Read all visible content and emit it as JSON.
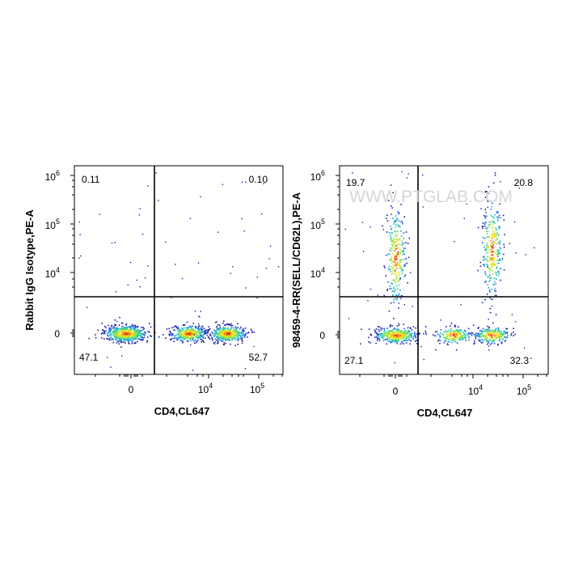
{
  "watermark": "WWW.PTGLAB.COM",
  "chart_data": [
    {
      "type": "scatter",
      "subtype": "flow-cytometry-pseudocolor-density",
      "xlabel": "CD4,CL647",
      "ylabel": "Rabbit IgG Isotype,PE-A",
      "x_scale": "biexponential",
      "y_scale": "biexponential",
      "x_ticks": [
        {
          "value": 0,
          "base": "0",
          "exp": ""
        },
        {
          "value": 10000,
          "base": "10",
          "exp": "4"
        },
        {
          "value": 100000,
          "base": "10",
          "exp": "5"
        }
      ],
      "y_ticks": [
        {
          "value": 0,
          "base": "0",
          "exp": ""
        },
        {
          "value": 10000,
          "base": "10",
          "exp": "4"
        },
        {
          "value": 100000,
          "base": "10",
          "exp": "5"
        },
        {
          "value": 1000000,
          "base": "10",
          "exp": "6"
        }
      ],
      "gate": {
        "x": 600,
        "y": 2500
      },
      "quadrants": {
        "upper_left": "0.11",
        "upper_right": "0.10",
        "lower_left": "47.1",
        "lower_right": "52.7"
      },
      "populations": [
        {
          "x": -150,
          "y": 0,
          "weight": 0.42,
          "note": "CD4-negative"
        },
        {
          "x": 3000,
          "y": 0,
          "weight": 0.28,
          "note": "CD4-intermediate"
        },
        {
          "x": 30000,
          "y": 0,
          "weight": 0.3,
          "note": "CD4-high"
        }
      ]
    },
    {
      "type": "scatter",
      "subtype": "flow-cytometry-pseudocolor-density",
      "xlabel": "CD4,CL647",
      "ylabel": "98459-4-RR(SELL/CD62L),PE-A",
      "x_scale": "biexponential",
      "y_scale": "biexponential",
      "x_ticks": [
        {
          "value": 0,
          "base": "0",
          "exp": ""
        },
        {
          "value": 10000,
          "base": "10",
          "exp": "4"
        },
        {
          "value": 100000,
          "base": "10",
          "exp": "5"
        }
      ],
      "y_ticks": [
        {
          "value": 0,
          "base": "0",
          "exp": ""
        },
        {
          "value": 10000,
          "base": "10",
          "exp": "4"
        },
        {
          "value": 100000,
          "base": "10",
          "exp": "5"
        },
        {
          "value": 1000000,
          "base": "10",
          "exp": "6"
        }
      ],
      "gate": {
        "x": 600,
        "y": 2500
      },
      "quadrants": {
        "upper_left": "19.7",
        "upper_right": "20.8",
        "lower_left": "27.1",
        "lower_right": "32.3"
      },
      "populations": [
        {
          "x": 0,
          "y": 0,
          "weight": 0.27,
          "note": "CD4-negative CD62L-negative"
        },
        {
          "x": 0,
          "y": 30000,
          "weight": 0.2,
          "note": "CD4-negative CD62L-positive"
        },
        {
          "x": 3000,
          "y": 0,
          "weight": 0.14,
          "note": "CD4-intermediate"
        },
        {
          "x": 30000,
          "y": 0,
          "weight": 0.18,
          "note": "CD4-high CD62L-negative"
        },
        {
          "x": 30000,
          "y": 60000,
          "weight": 0.21,
          "note": "CD4-high CD62L-positive"
        }
      ]
    }
  ]
}
